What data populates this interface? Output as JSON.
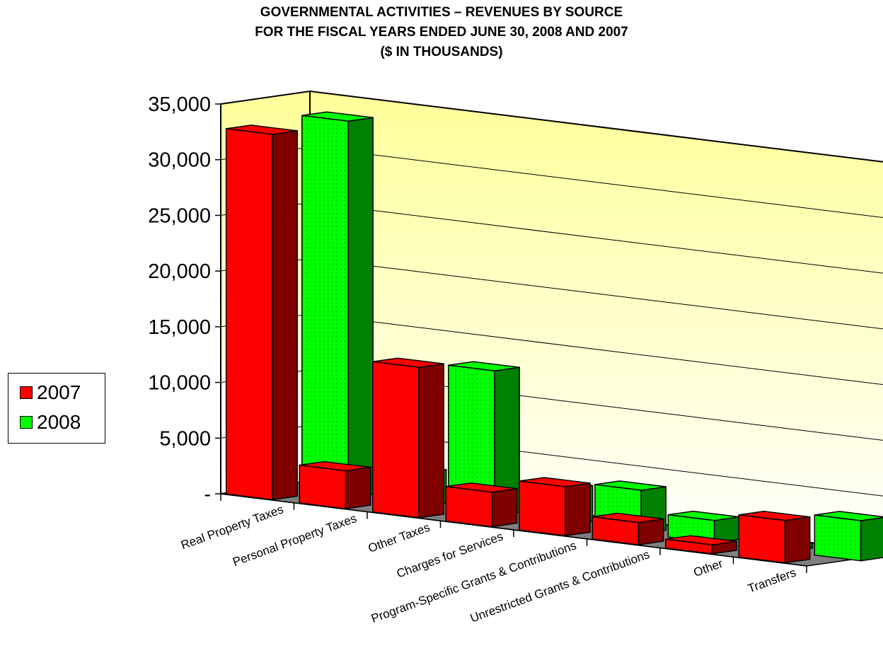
{
  "chart_data": {
    "type": "bar",
    "title_lines": [
      "Governmental Activities – Revenues by Source",
      "For the Fiscal Years Ended June 30, 2008 and 2007",
      "($ In Thousands)"
    ],
    "categories": [
      "Real Property Taxes",
      "Personal Property Taxes",
      "Other Taxes",
      "Charges for Services",
      "Program-Specific Grants & Contributions",
      "Unrestricted Grants & Contributions",
      "Other",
      "Transfers"
    ],
    "series": [
      {
        "name": "2007",
        "color": "#ff0000",
        "values": [
          32800,
          3400,
          13500,
          3100,
          4400,
          2000,
          800,
          3800
        ]
      },
      {
        "name": "2008",
        "color": "#00ff00",
        "values": [
          33800,
          3000,
          13000,
          3200,
          3900,
          2000,
          500,
          3600
        ]
      }
    ],
    "y_ticks": [
      "-",
      "5,000",
      "10,000",
      "15,000",
      "20,000",
      "25,000",
      "30,000",
      "35,000"
    ],
    "ylim": [
      0,
      35000
    ],
    "grid": true,
    "legend_position": "left",
    "style": "3d-clustered-columns"
  }
}
